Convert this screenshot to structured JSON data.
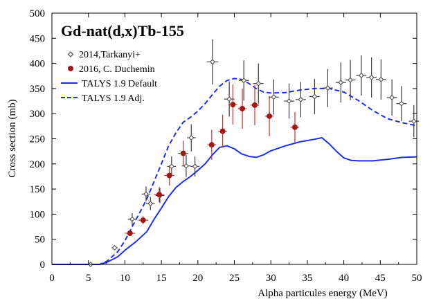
{
  "chart_data": {
    "type": "scatter",
    "title": "Gd-nat(d,x)Tb-155",
    "xlabel": "Alpha particules energy (MeV)",
    "ylabel": "Cross section (mb)",
    "xlim": [
      0,
      50
    ],
    "ylim": [
      0,
      500
    ],
    "xticks": [
      0,
      5,
      10,
      15,
      20,
      25,
      30,
      35,
      40,
      45,
      50
    ],
    "yticks": [
      0,
      50,
      100,
      150,
      200,
      250,
      300,
      350,
      400,
      450,
      500
    ],
    "grid": false,
    "legend_position": "top-left",
    "series": [
      {
        "name": "2014,Tarkanyi+",
        "kind": "points",
        "marker": "open-diamond",
        "color": "#5a5a5a",
        "points": [
          {
            "x": 5.3,
            "y": 0,
            "xerr": 0.5,
            "yerr": 0
          },
          {
            "x": 8.6,
            "y": 33,
            "xerr": 0.4,
            "yerr": 4
          },
          {
            "x": 11.0,
            "y": 90,
            "xerr": 0.6,
            "yerr": 12
          },
          {
            "x": 12.9,
            "y": 140,
            "xerr": 0.6,
            "yerr": 15
          },
          {
            "x": 13.5,
            "y": 121,
            "xerr": 0.6,
            "yerr": 13
          },
          {
            "x": 14.8,
            "y": 137,
            "xerr": 0.6,
            "yerr": 15
          },
          {
            "x": 16.4,
            "y": 195,
            "xerr": 0.6,
            "yerr": 20
          },
          {
            "x": 18.4,
            "y": 196,
            "xerr": 0.6,
            "yerr": 22
          },
          {
            "x": 19.1,
            "y": 252,
            "xerr": 0.6,
            "yerr": 27
          },
          {
            "x": 19.6,
            "y": 195,
            "xerr": 0.6,
            "yerr": 20
          },
          {
            "x": 22.0,
            "y": 403,
            "xerr": 0.8,
            "yerr": 45
          },
          {
            "x": 24.3,
            "y": 329,
            "xerr": 0.7,
            "yerr": 35
          },
          {
            "x": 26.3,
            "y": 366,
            "xerr": 0.7,
            "yerr": 40
          },
          {
            "x": 28.3,
            "y": 360,
            "xerr": 0.7,
            "yerr": 40
          },
          {
            "x": 30.4,
            "y": 333,
            "xerr": 0.7,
            "yerr": 35
          },
          {
            "x": 32.5,
            "y": 325,
            "xerr": 0.7,
            "yerr": 35
          },
          {
            "x": 34.1,
            "y": 328,
            "xerr": 0.7,
            "yerr": 35
          },
          {
            "x": 36.0,
            "y": 334,
            "xerr": 0.7,
            "yerr": 35
          },
          {
            "x": 37.8,
            "y": 351,
            "xerr": 0.7,
            "yerr": 38
          },
          {
            "x": 39.6,
            "y": 362,
            "xerr": 0.7,
            "yerr": 40
          },
          {
            "x": 40.9,
            "y": 367,
            "xerr": 0.7,
            "yerr": 40
          },
          {
            "x": 42.4,
            "y": 376,
            "xerr": 0.7,
            "yerr": 40
          },
          {
            "x": 43.8,
            "y": 372,
            "xerr": 0.7,
            "yerr": 40
          },
          {
            "x": 45.1,
            "y": 368,
            "xerr": 0.7,
            "yerr": 40
          },
          {
            "x": 46.6,
            "y": 332,
            "xerr": 0.7,
            "yerr": 36
          },
          {
            "x": 47.9,
            "y": 320,
            "xerr": 0.7,
            "yerr": 35
          },
          {
            "x": 49.6,
            "y": 285,
            "xerr": 0.7,
            "yerr": 32
          }
        ]
      },
      {
        "name": "2016, C. Duchemin",
        "kind": "points",
        "marker": "filled-circle",
        "color": "#a01818",
        "points": [
          {
            "x": 10.7,
            "y": 62,
            "xerr": 0.7,
            "yerr": 5
          },
          {
            "x": 12.5,
            "y": 88,
            "xerr": 0.7,
            "yerr": 8
          },
          {
            "x": 14.7,
            "y": 139,
            "xerr": 0.7,
            "yerr": 15
          },
          {
            "x": 16.1,
            "y": 177,
            "xerr": 0.7,
            "yerr": 20
          },
          {
            "x": 18.0,
            "y": 221,
            "xerr": 0.7,
            "yerr": 25
          },
          {
            "x": 21.9,
            "y": 238,
            "xerr": 0.6,
            "yerr": 30
          },
          {
            "x": 23.4,
            "y": 265,
            "xerr": 0.6,
            "yerr": 33
          },
          {
            "x": 24.8,
            "y": 318,
            "xerr": 0.6,
            "yerr": 40
          },
          {
            "x": 26.1,
            "y": 310,
            "xerr": 0.6,
            "yerr": 40
          },
          {
            "x": 27.8,
            "y": 317,
            "xerr": 0.6,
            "yerr": 40
          },
          {
            "x": 29.8,
            "y": 295,
            "xerr": 0.6,
            "yerr": 40
          },
          {
            "x": 33.3,
            "y": 273,
            "xerr": 0.6,
            "yerr": 30
          }
        ]
      },
      {
        "name": "TALYS 1.9 Default",
        "kind": "line",
        "dash": "solid",
        "color": "#1f2fe0",
        "points": [
          {
            "x": 0,
            "y": 0
          },
          {
            "x": 6.5,
            "y": 0
          },
          {
            "x": 7.5,
            "y": 4
          },
          {
            "x": 9,
            "y": 15
          },
          {
            "x": 10,
            "y": 28
          },
          {
            "x": 11.5,
            "y": 45
          },
          {
            "x": 13,
            "y": 65
          },
          {
            "x": 14,
            "y": 90
          },
          {
            "x": 15,
            "y": 112
          },
          {
            "x": 16,
            "y": 135
          },
          {
            "x": 17,
            "y": 153
          },
          {
            "x": 18,
            "y": 165
          },
          {
            "x": 19,
            "y": 175
          },
          {
            "x": 20,
            "y": 187
          },
          {
            "x": 21,
            "y": 200
          },
          {
            "x": 22,
            "y": 218
          },
          {
            "x": 23,
            "y": 233
          },
          {
            "x": 24,
            "y": 236
          },
          {
            "x": 25,
            "y": 230
          },
          {
            "x": 26,
            "y": 220
          },
          {
            "x": 27,
            "y": 215
          },
          {
            "x": 28,
            "y": 213
          },
          {
            "x": 29,
            "y": 218
          },
          {
            "x": 30,
            "y": 226
          },
          {
            "x": 32,
            "y": 236
          },
          {
            "x": 34,
            "y": 244
          },
          {
            "x": 36,
            "y": 249
          },
          {
            "x": 37,
            "y": 252
          },
          {
            "x": 38,
            "y": 240
          },
          {
            "x": 39,
            "y": 225
          },
          {
            "x": 40,
            "y": 212
          },
          {
            "x": 41,
            "y": 207
          },
          {
            "x": 42,
            "y": 206
          },
          {
            "x": 44,
            "y": 206
          },
          {
            "x": 46,
            "y": 209
          },
          {
            "x": 48,
            "y": 213
          },
          {
            "x": 50,
            "y": 214
          }
        ]
      },
      {
        "name": "TALYS 1.9 Adj.",
        "kind": "line",
        "dash": "dashed",
        "color": "#1f2fe0",
        "points": [
          {
            "x": 0,
            "y": 0
          },
          {
            "x": 6.5,
            "y": 0
          },
          {
            "x": 7.5,
            "y": 6
          },
          {
            "x": 9,
            "y": 25
          },
          {
            "x": 10,
            "y": 47
          },
          {
            "x": 11,
            "y": 75
          },
          {
            "x": 12,
            "y": 102
          },
          {
            "x": 13,
            "y": 130
          },
          {
            "x": 14,
            "y": 165
          },
          {
            "x": 15,
            "y": 200
          },
          {
            "x": 16,
            "y": 236
          },
          {
            "x": 17,
            "y": 262
          },
          {
            "x": 18,
            "y": 283
          },
          {
            "x": 19,
            "y": 293
          },
          {
            "x": 20,
            "y": 305
          },
          {
            "x": 21,
            "y": 320
          },
          {
            "x": 22,
            "y": 338
          },
          {
            "x": 23,
            "y": 355
          },
          {
            "x": 24,
            "y": 366
          },
          {
            "x": 25,
            "y": 370
          },
          {
            "x": 26,
            "y": 368
          },
          {
            "x": 27,
            "y": 360
          },
          {
            "x": 28,
            "y": 350
          },
          {
            "x": 29,
            "y": 343
          },
          {
            "x": 30,
            "y": 341
          },
          {
            "x": 32,
            "y": 342
          },
          {
            "x": 34,
            "y": 347
          },
          {
            "x": 36,
            "y": 350
          },
          {
            "x": 38,
            "y": 350
          },
          {
            "x": 40,
            "y": 343
          },
          {
            "x": 42,
            "y": 326
          },
          {
            "x": 44,
            "y": 306
          },
          {
            "x": 46,
            "y": 290
          },
          {
            "x": 48,
            "y": 282
          },
          {
            "x": 50,
            "y": 276
          }
        ]
      }
    ]
  }
}
